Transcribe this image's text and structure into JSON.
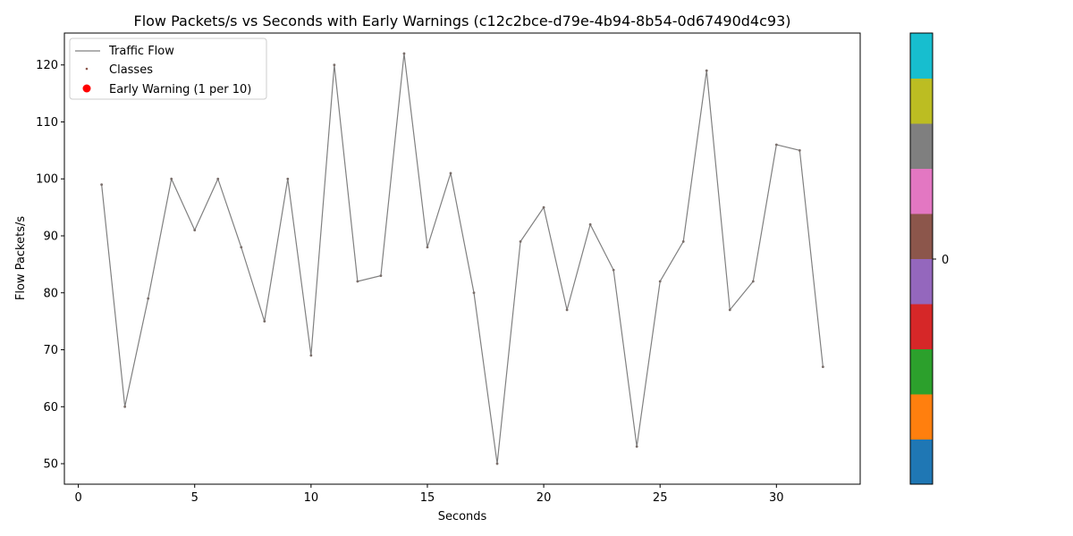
{
  "chart_data": {
    "type": "line",
    "title": "Flow Packets/s vs Seconds with Early Warnings (c12c2bce-d79e-4b94-8b54-0d67490d4c93)",
    "xlabel": "Seconds",
    "ylabel": "Flow Packets/s",
    "xlim": [
      -0.6,
      33.6
    ],
    "ylim": [
      46.4,
      125.6
    ],
    "xticks": [
      0,
      5,
      10,
      15,
      20,
      25,
      30
    ],
    "yticks": [
      50,
      60,
      70,
      80,
      90,
      100,
      110,
      120
    ],
    "grid": false,
    "legend_position": "top-left",
    "legend": [
      {
        "label": "Traffic Flow",
        "kind": "line",
        "color": "#808080"
      },
      {
        "label": "Classes",
        "kind": "dot-small",
        "color": "#8c564b"
      },
      {
        "label": "Early Warning (1 per 10)",
        "kind": "dot-large",
        "color": "#ff0000"
      }
    ],
    "series": [
      {
        "name": "Traffic Flow",
        "color": "#808080",
        "x": [
          1,
          2,
          3,
          4,
          5,
          6,
          7,
          8,
          9,
          10,
          11,
          12,
          13,
          14,
          15,
          16,
          17,
          18,
          19,
          20,
          21,
          22,
          23,
          24,
          25,
          26,
          27,
          28,
          29,
          30,
          31,
          32
        ],
        "y": [
          99,
          60,
          79,
          100,
          91,
          100,
          88,
          75,
          100,
          69,
          120,
          82,
          83,
          122,
          88,
          101,
          80,
          50,
          89,
          95,
          77,
          92,
          84,
          53,
          82,
          89,
          119,
          77,
          82,
          106,
          105,
          67
        ]
      }
    ],
    "colorbar": {
      "colors": [
        "#1f77b4",
        "#ff7f0e",
        "#2ca02c",
        "#d62728",
        "#9467bd",
        "#8c564b",
        "#e377c2",
        "#7f7f7f",
        "#bcbd22",
        "#17becf"
      ],
      "tick_label": "0"
    }
  }
}
